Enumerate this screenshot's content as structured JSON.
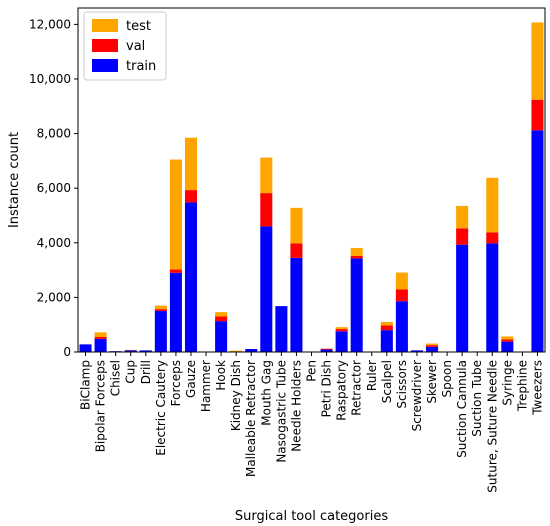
{
  "chart_data": {
    "type": "bar",
    "stacked": true,
    "xlabel": "Surgical tool categories",
    "ylabel": "Instance count",
    "ylim": [
      0,
      12600
    ],
    "yticks": [
      0,
      2000,
      4000,
      6000,
      8000,
      10000,
      12000
    ],
    "ytick_labels": [
      "0",
      "2,000",
      "4,000",
      "6,000",
      "8,000",
      "10,000",
      "12,000"
    ],
    "legend_position": "top-left",
    "categories": [
      "BiClamp",
      "Bipolar Forceps",
      "Chisel",
      "Cup",
      "Drill",
      "Electric Cautery",
      "Forceps",
      "Gauze",
      "Hammer",
      "Hook",
      "Kidney Dish",
      "Malleable Retractor",
      "Mouth Gag",
      "Nasogastric Tube",
      "Needle Holders",
      "Pen",
      "Petri Dish",
      "Raspatory",
      "Retractor",
      "Ruler",
      "Scalpel",
      "Scissors",
      "Screwdriver",
      "Skewer",
      "Spoon",
      "Suction Cannula",
      "Suction Tube",
      "Suture, Suture Needle",
      "Syringe",
      "Trephine",
      "Tweezers"
    ],
    "series": [
      {
        "name": "train",
        "color": "#0000ff",
        "values": [
          280,
          480,
          30,
          60,
          60,
          1500,
          2900,
          5480,
          10,
          1130,
          20,
          110,
          4600,
          1680,
          3450,
          10,
          90,
          760,
          3430,
          10,
          800,
          1860,
          60,
          190,
          10,
          3930,
          20,
          3980,
          380,
          10,
          8120
        ]
      },
      {
        "name": "val",
        "color": "#ff0000",
        "values": [
          0,
          70,
          0,
          10,
          0,
          70,
          120,
          450,
          0,
          170,
          0,
          0,
          1220,
          0,
          530,
          0,
          30,
          80,
          90,
          0,
          170,
          430,
          0,
          60,
          0,
          600,
          0,
          400,
          80,
          0,
          1120
        ]
      },
      {
        "name": "test",
        "color": "#ffa500",
        "values": [
          0,
          170,
          0,
          10,
          0,
          130,
          4030,
          1920,
          0,
          160,
          30,
          0,
          1300,
          0,
          1300,
          0,
          0,
          70,
          290,
          0,
          130,
          620,
          0,
          60,
          0,
          820,
          0,
          2000,
          110,
          0,
          2830
        ]
      }
    ]
  }
}
